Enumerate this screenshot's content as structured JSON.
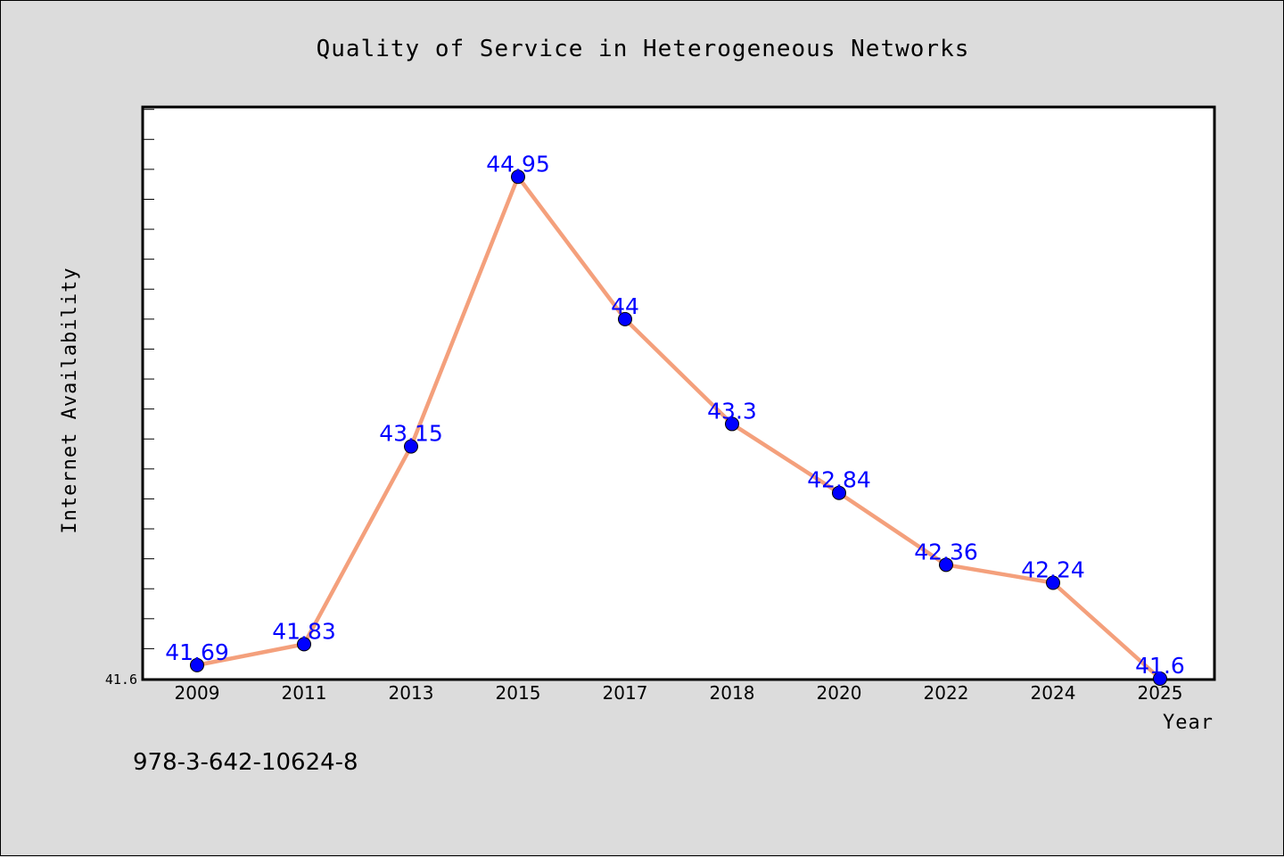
{
  "chart_data": {
    "type": "line",
    "title": "Quality of Service in Heterogeneous Networks",
    "xlabel": "Year",
    "ylabel": "Internet Availability",
    "categories": [
      "2009",
      "2011",
      "2013",
      "2015",
      "2017",
      "2018",
      "2020",
      "2022",
      "2024",
      "2025"
    ],
    "series": [
      {
        "values": [
          41.69,
          41.83,
          43.15,
          44.95,
          44,
          43.3,
          42.84,
          42.36,
          42.24,
          41.6
        ]
      }
    ],
    "data_labels": [
      "41.69",
      "41.83",
      "43.15",
      "44.95",
      "44",
      "43.3",
      "42.84",
      "42.36",
      "42.24",
      "41.6"
    ],
    "y_tick_label": "41.6",
    "ylim": [
      41.6,
      45.41
    ],
    "grid": false,
    "line_color": "#f4a07c",
    "marker_color": "#0000ff",
    "label_color": "#0000ff",
    "background_color": "#dcdcdc",
    "plot_background": "#ffffff"
  },
  "annotation": "978-3-642-10624-8"
}
